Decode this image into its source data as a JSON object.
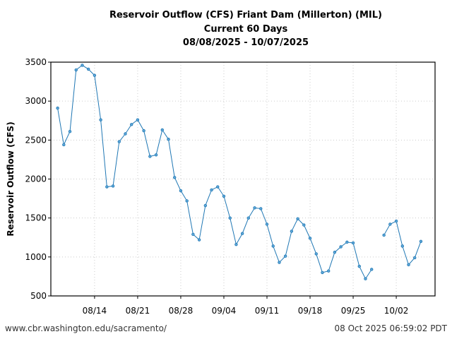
{
  "chart_data": {
    "type": "line",
    "title": [
      "Reservoir Outflow (CFS) Friant Dam (Millerton) (MIL)",
      "Current 60 Days",
      "08/08/2025 - 10/07/2025"
    ],
    "xlabel": "",
    "ylabel": "Reservoir Outflow (CFS)",
    "ylim": [
      500,
      3500
    ],
    "yticks": [
      500,
      1000,
      1500,
      2000,
      2500,
      3000,
      3500
    ],
    "xticks": [
      {
        "day": 6,
        "label": "08/14"
      },
      {
        "day": 13,
        "label": "08/21"
      },
      {
        "day": 20,
        "label": "08/28"
      },
      {
        "day": 27,
        "label": "09/04"
      },
      {
        "day": 34,
        "label": "09/11"
      },
      {
        "day": 41,
        "label": "09/18"
      },
      {
        "day": 48,
        "label": "09/25"
      },
      {
        "day": 55,
        "label": "10/02"
      }
    ],
    "xlim_days": [
      -1.1,
      61.3
    ],
    "grid": true,
    "start_date": "08/08",
    "series": [
      {
        "name": "Reservoir Outflow",
        "color": "#1f77b4",
        "values": [
          2910,
          2440,
          2610,
          3400,
          3460,
          3410,
          3330,
          2760,
          1900,
          1910,
          2480,
          2580,
          2700,
          2760,
          2620,
          2290,
          2310,
          2630,
          2510,
          2020,
          1850,
          1720,
          1290,
          1220,
          1660,
          1860,
          1900,
          1780,
          1500,
          1160,
          1300,
          1500,
          1630,
          1620,
          1420,
          1140,
          930,
          1010,
          1330,
          1490,
          1410,
          1240,
          1040,
          800,
          820,
          1060,
          1130,
          1190,
          1180,
          880,
          720,
          840,
          null,
          1280,
          1420,
          1460,
          1140,
          900,
          990,
          1200
        ]
      }
    ]
  },
  "footer": {
    "left": "www.cbr.washington.edu/sacramento/",
    "right": "08 Oct 2025 06:59:02 PDT"
  }
}
